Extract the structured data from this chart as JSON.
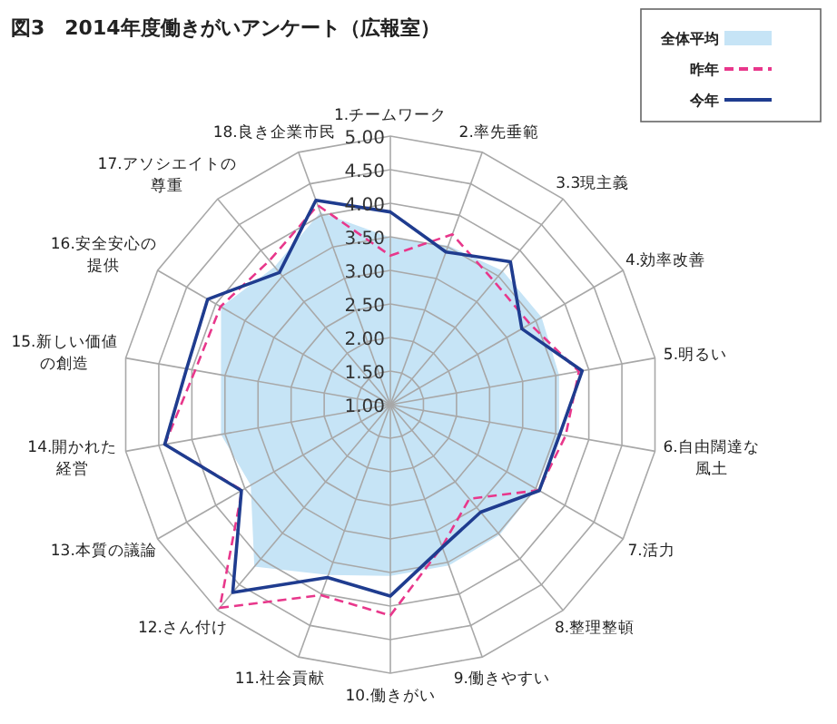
{
  "chart_data": {
    "type": "radar",
    "title": "図3　2014年度働きがいアンケート（広報室）",
    "categories": [
      "1.チームワーク",
      "2.率先垂範",
      "3.3現主義",
      "4.効率改善",
      "5.明るい",
      "6.自由闊達な風土",
      "7.活力",
      "8.整理整頓",
      "9.働きやすい",
      "10.働きがい",
      "11.社会貢献",
      "12.さん付け",
      "13.本質の議論",
      "14.開かれた経営",
      "15.新しい価値の創造",
      "16.安全安心の提供",
      "17.アソシエイトの尊重",
      "18.良き企業市民"
    ],
    "ylim": [
      1,
      5
    ],
    "yticks": [
      {
        "value": 1,
        "label": "1.00"
      },
      {
        "value": 1.5,
        "label": "1.50"
      },
      {
        "value": 2,
        "label": "2.00"
      },
      {
        "value": 2.5,
        "label": "2.50"
      },
      {
        "value": 3,
        "label": "3.00"
      },
      {
        "value": 3.5,
        "label": "3.50"
      },
      {
        "value": 4,
        "label": "4.00"
      },
      {
        "value": 4.5,
        "label": "4.50"
      },
      {
        "value": 5,
        "label": "5.00"
      }
    ],
    "grid": true,
    "legend": "top right",
    "series": [
      {
        "name": "全体平均",
        "type": "area",
        "color": "#c6e4f6",
        "values": [
          3.49,
          3.52,
          3.6,
          3.6,
          3.55,
          3.55,
          3.5,
          3.53,
          3.55,
          3.55,
          3.7,
          4.15,
          3.4,
          3.56,
          3.56,
          3.91,
          3.68,
          4.05
        ]
      },
      {
        "name": "昨年",
        "type": "radar",
        "line_style": "dashed",
        "color": "#e8378b",
        "values": [
          3.22,
          3.7,
          3.4,
          3.4,
          3.85,
          3.65,
          3.55,
          2.83,
          3.25,
          4.14,
          4.02,
          4.95,
          3.55,
          4.41,
          3.95,
          3.92,
          3.8,
          4.16
        ]
      },
      {
        "name": "今年",
        "type": "radar",
        "line_style": "solid",
        "color": "#1f3c8f",
        "values": [
          3.87,
          3.42,
          3.78,
          3.26,
          3.9,
          3.56,
          3.56,
          3.09,
          3.26,
          3.85,
          3.74,
          4.65,
          3.56,
          4.41,
          4.08,
          4.14,
          3.57,
          4.24
        ]
      }
    ]
  }
}
